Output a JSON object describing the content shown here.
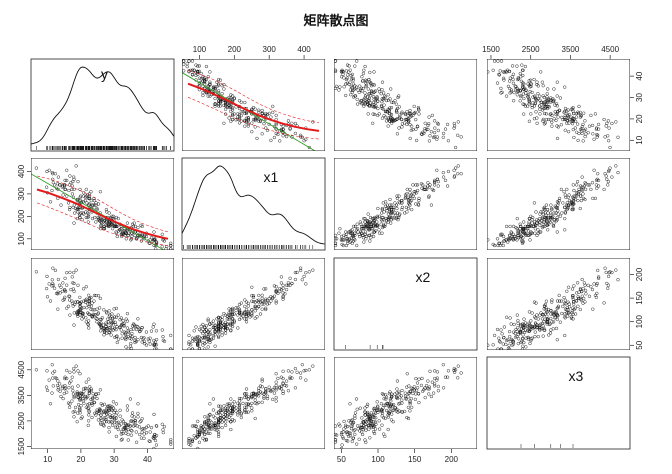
{
  "chart_data": {
    "type": "scatter",
    "title": "矩阵散点图",
    "variables": [
      {
        "name": "y",
        "range": [
          5,
          48
        ],
        "ticks": [
          10,
          20,
          30,
          40
        ]
      },
      {
        "name": "x1",
        "range": [
          50,
          460
        ],
        "ticks": [
          100,
          200,
          300,
          400
        ]
      },
      {
        "name": "x2",
        "range": [
          40,
          235
        ],
        "ticks": [
          50,
          100,
          150,
          200
        ]
      },
      {
        "name": "x3",
        "range": [
          1400,
          5000
        ],
        "ticks": [
          1500,
          2500,
          3500,
          4500
        ]
      }
    ],
    "tick_sides": {
      "top": [
        1,
        3
      ],
      "bottom": [
        0,
        2
      ],
      "left": [
        1,
        3
      ],
      "right": [
        0,
        2
      ]
    },
    "diagonal": "density with rug",
    "lines": {
      "smooth": "#e31a1c",
      "linear_fit": "#33a02c",
      "spread": "#e31a1c"
    },
    "grid": false,
    "legend": "none"
  }
}
